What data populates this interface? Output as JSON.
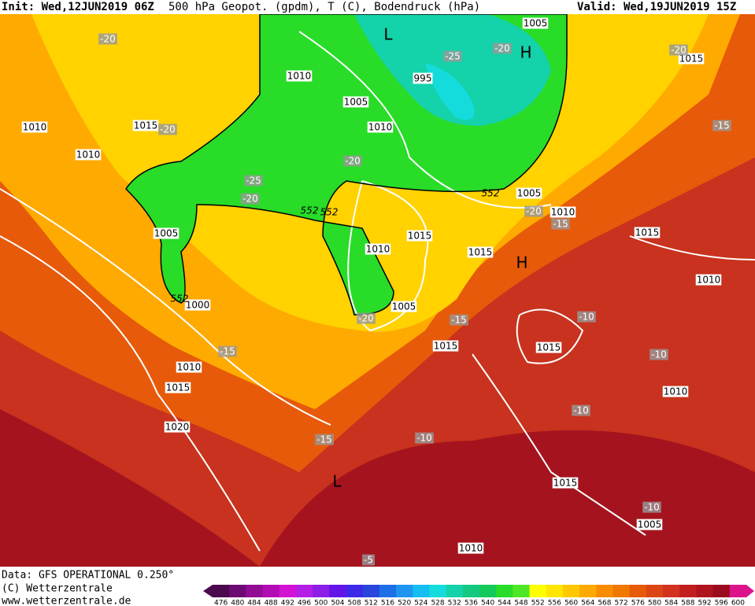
{
  "header": {
    "init": "Init: Wed,12JUN2019 06Z",
    "title": "500 hPa Geopot. (gpdm), T (C), Bodendruck (hPa)",
    "valid": "Valid: Wed,19JUN2019 15Z"
  },
  "footer": {
    "data": "Data: GFS OPERATIONAL 0.250°",
    "copyright": "(C) Wetterzentrale",
    "url": "www.wetterzentrale.de"
  },
  "map": {
    "isobar_labels": [
      "1005",
      "1015",
      "1010",
      "1005",
      "1010",
      "1010",
      "1015",
      "1010",
      "1005",
      "1010",
      "1015",
      "1005",
      "1015",
      "1010",
      "1015",
      "1010",
      "1000",
      "1005",
      "1015",
      "1015",
      "1010",
      "1015",
      "1010",
      "1020",
      "1015",
      "1005",
      "1010",
      "995"
    ],
    "temperature_labels": [
      "-20",
      "-20",
      "-20",
      "-25",
      "-20",
      "-15",
      "-20",
      "-25",
      "-20",
      "-20",
      "-15",
      "-20",
      "-15",
      "-10",
      "-15",
      "-10",
      "-10",
      "-15",
      "-10",
      "-10",
      "-5"
    ],
    "height_labels": [
      "552",
      "552",
      "552",
      "552"
    ],
    "pressure_centers": [
      "L",
      "H",
      "H",
      "L"
    ]
  },
  "colorbar": {
    "labels": [
      "476",
      "480",
      "484",
      "488",
      "492",
      "496",
      "500",
      "504",
      "508",
      "512",
      "516",
      "520",
      "524",
      "528",
      "532",
      "536",
      "540",
      "544",
      "548",
      "552",
      "556",
      "560",
      "564",
      "568",
      "572",
      "576",
      "580",
      "584",
      "588",
      "592",
      "596",
      "600"
    ],
    "colors": [
      "#4b0a4e",
      "#6e0a74",
      "#920c94",
      "#b40cb4",
      "#d214d2",
      "#b41ee6",
      "#8c1ee6",
      "#6414e6",
      "#3c28e6",
      "#2846dc",
      "#1e6ee6",
      "#1e96f0",
      "#14bef0",
      "#14dcdc",
      "#14d2aa",
      "#14c882",
      "#14c85a",
      "#28dc28",
      "#50e628",
      "#ffff00",
      "#ffe600",
      "#ffc800",
      "#ffaa00",
      "#fa8c00",
      "#f07800",
      "#e65a0a",
      "#dc4614",
      "#d2321e",
      "#c31e1e",
      "#af141e",
      "#9b0a1e",
      "#dc148c"
    ]
  }
}
